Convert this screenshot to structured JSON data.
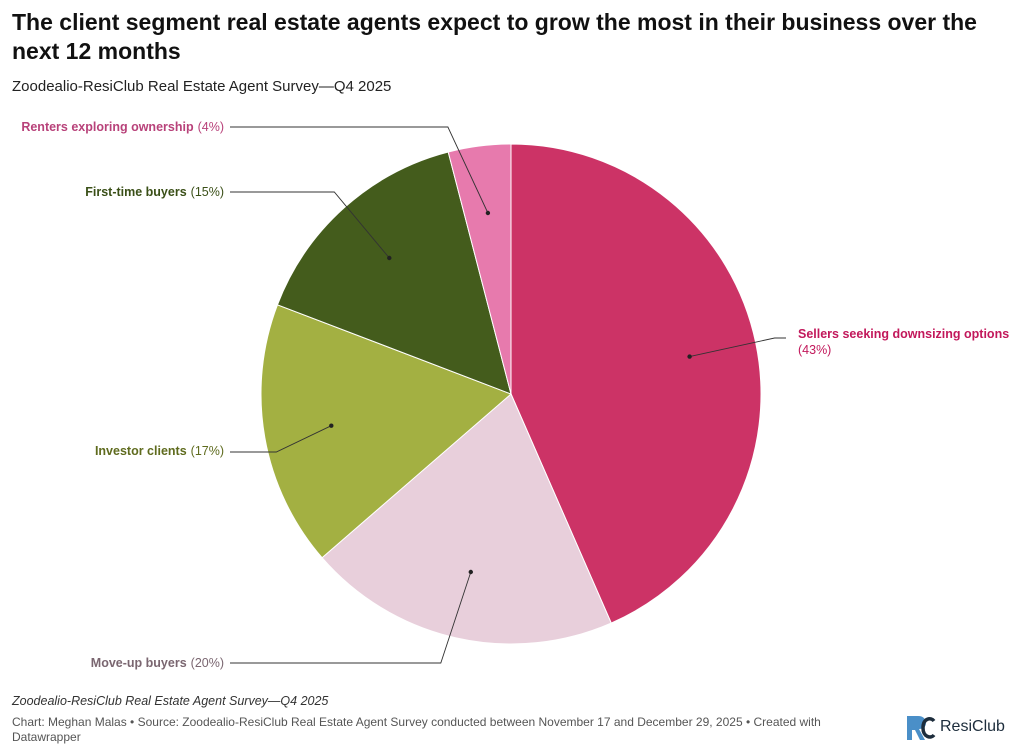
{
  "header": {
    "title": "The client segment real estate agents expect to grow the most in their business over the next 12 months",
    "subtitle": "Zoodealio-ResiClub Real Estate Agent Survey—Q4 2025"
  },
  "chart_data": {
    "type": "pie",
    "title": "The client segment real estate agents expect to grow the most in their business over the next 12 months",
    "subtitle": "Zoodealio-ResiClub Real Estate Agent Survey—Q4 2025",
    "unit": "%",
    "slices": [
      {
        "name": "Sellers seeking downsizing options",
        "value": 43,
        "pct_label": "(43%)",
        "color": "#cc3366",
        "label_color": "#c2185b"
      },
      {
        "name": "Move-up buyers",
        "value": 20,
        "pct_label": "(20%)",
        "color": "#e8cfdb",
        "label_color": "#7a6670"
      },
      {
        "name": "Investor clients",
        "value": 17,
        "pct_label": "(17%)",
        "color": "#a3b042",
        "label_color": "#5f6b1e"
      },
      {
        "name": "First-time buyers",
        "value": 15,
        "pct_label": "(15%)",
        "color": "#445c1c",
        "label_color": "#3a4f17"
      },
      {
        "name": "Renters exploring ownership",
        "value": 4,
        "pct_label": "(4%)",
        "color": "#e77aad",
        "label_color": "#b8427a"
      }
    ]
  },
  "footer": {
    "notes": "Zoodealio-ResiClub Real Estate Agent Survey—Q4 2025",
    "credit": "Chart: Meghan Malas • Source: Zoodealio-ResiClub Real Estate Agent Survey conducted between November 17 and December 29, 2025 • Created with Datawrapper",
    "brand_name": "ResiClub",
    "brand_color": "#4a8fc8"
  }
}
